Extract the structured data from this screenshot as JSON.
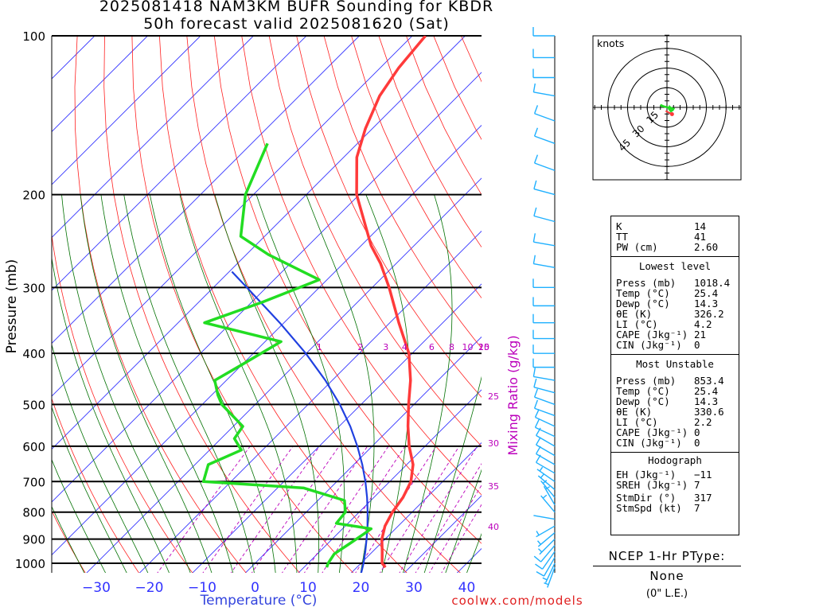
{
  "header": {
    "title_line1": "2025081418 NAM3KM BUFR Sounding for KBDR",
    "title_line2": "50h forecast valid 2025081620 (Sat)"
  },
  "credit": "coolwx.com/models",
  "colors": {
    "temperature": "#ff3a3a",
    "dewpoint": "#22dd22",
    "isotherm": "#3333ff",
    "dry_adiabat": "#ff2020",
    "moist_adiabat": "#007000",
    "mixing_ratio": "#bb00bb",
    "parcel": "#2040e0",
    "wind_barb": "#1fb0ff"
  },
  "chart_data": {
    "type": "skew-t",
    "ylabel": "Pressure (mb)",
    "xlabel": "Temperature (°C)",
    "mixing_ratio_label": "Mixing Ratio (g/kg)",
    "y_scale": "log",
    "ylim": [
      1050,
      100
    ],
    "xlim": [
      -38,
      42
    ],
    "pressure_ticks": [
      100,
      200,
      300,
      400,
      500,
      600,
      700,
      800,
      900,
      1000
    ],
    "temperature_ticks": [
      -30,
      -20,
      -10,
      0,
      10,
      20,
      30,
      40
    ],
    "mixing_ratio_ticks": [
      "1",
      "2",
      "3",
      "4",
      "6",
      "8",
      "10",
      "15",
      "20",
      "25",
      "30",
      "35",
      "40"
    ],
    "temperature_profile": [
      {
        "p": 1018,
        "t": 25.4
      },
      {
        "p": 1000,
        "t": 24.0
      },
      {
        "p": 950,
        "t": 21.8
      },
      {
        "p": 900,
        "t": 19.4
      },
      {
        "p": 850,
        "t": 17.5
      },
      {
        "p": 800,
        "t": 16.3
      },
      {
        "p": 750,
        "t": 15.5
      },
      {
        "p": 700,
        "t": 14.0
      },
      {
        "p": 650,
        "t": 11.2
      },
      {
        "p": 600,
        "t": 7.0
      },
      {
        "p": 550,
        "t": 3.0
      },
      {
        "p": 500,
        "t": -1.0
      },
      {
        "p": 450,
        "t": -5.2
      },
      {
        "p": 400,
        "t": -10.6
      },
      {
        "p": 350,
        "t": -18.3
      },
      {
        "p": 300,
        "t": -26.8
      },
      {
        "p": 270,
        "t": -33.0
      },
      {
        "p": 250,
        "t": -38.1
      },
      {
        "p": 200,
        "t": -50.5
      },
      {
        "p": 170,
        "t": -57.5
      },
      {
        "p": 150,
        "t": -61.3
      },
      {
        "p": 130,
        "t": -64.8
      },
      {
        "p": 115,
        "t": -66.5
      },
      {
        "p": 100,
        "t": -67.5
      }
    ],
    "dewpoint_profile": [
      {
        "p": 1018,
        "t": 14.3
      },
      {
        "p": 1000,
        "t": 13.8
      },
      {
        "p": 960,
        "t": 13.2
      },
      {
        "p": 920,
        "t": 14.1
      },
      {
        "p": 880,
        "t": 15.0
      },
      {
        "p": 860,
        "t": 15.4
      },
      {
        "p": 840,
        "t": 7.8
      },
      {
        "p": 800,
        "t": 7.4
      },
      {
        "p": 760,
        "t": 5.0
      },
      {
        "p": 720,
        "t": -5.0
      },
      {
        "p": 700,
        "t": -25.2
      },
      {
        "p": 650,
        "t": -27.5
      },
      {
        "p": 610,
        "t": -24.0
      },
      {
        "p": 580,
        "t": -27.5
      },
      {
        "p": 550,
        "t": -28.2
      },
      {
        "p": 500,
        "t": -36.3
      },
      {
        "p": 480,
        "t": -38.8
      },
      {
        "p": 450,
        "t": -42.2
      },
      {
        "p": 420,
        "t": -40.0
      },
      {
        "p": 380,
        "t": -37.0
      },
      {
        "p": 350,
        "t": -55.0
      },
      {
        "p": 320,
        "t": -48.0
      },
      {
        "p": 290,
        "t": -41.5
      },
      {
        "p": 260,
        "t": -55.8
      },
      {
        "p": 240,
        "t": -64.5
      },
      {
        "p": 200,
        "t": -71.5
      },
      {
        "p": 160,
        "t": -77.0
      }
    ],
    "parcel_profile": [
      {
        "p": 1050,
        "t": 22.1
      },
      {
        "p": 1000,
        "t": 20.5
      },
      {
        "p": 950,
        "t": 18.6
      },
      {
        "p": 900,
        "t": 16.5
      },
      {
        "p": 850,
        "t": 14.2
      },
      {
        "p": 800,
        "t": 11.6
      },
      {
        "p": 750,
        "t": 8.7
      },
      {
        "p": 700,
        "t": 5.4
      },
      {
        "p": 650,
        "t": 1.6
      },
      {
        "p": 600,
        "t": -2.8
      },
      {
        "p": 550,
        "t": -7.9
      },
      {
        "p": 500,
        "t": -14.0
      },
      {
        "p": 450,
        "t": -21.3
      },
      {
        "p": 400,
        "t": -30.1
      },
      {
        "p": 350,
        "t": -40.8
      },
      {
        "p": 300,
        "t": -53.7
      },
      {
        "p": 280,
        "t": -59.5
      }
    ],
    "wind_profile": [
      {
        "p": 1018,
        "dir": 200,
        "spd": 8
      },
      {
        "p": 1000,
        "dir": 205,
        "spd": 9
      },
      {
        "p": 975,
        "dir": 210,
        "spd": 10
      },
      {
        "p": 950,
        "dir": 215,
        "spd": 10
      },
      {
        "p": 925,
        "dir": 220,
        "spd": 10
      },
      {
        "p": 900,
        "dir": 225,
        "spd": 9
      },
      {
        "p": 875,
        "dir": 230,
        "spd": 8
      },
      {
        "p": 850,
        "dir": 240,
        "spd": 6
      },
      {
        "p": 825,
        "dir": 280,
        "spd": 4
      },
      {
        "p": 800,
        "dir": 320,
        "spd": 5
      },
      {
        "p": 775,
        "dir": 330,
        "spd": 6
      },
      {
        "p": 750,
        "dir": 320,
        "spd": 7
      },
      {
        "p": 725,
        "dir": 310,
        "spd": 8
      },
      {
        "p": 700,
        "dir": 305,
        "spd": 9
      },
      {
        "p": 675,
        "dir": 300,
        "spd": 10
      },
      {
        "p": 650,
        "dir": 300,
        "spd": 10
      },
      {
        "p": 625,
        "dir": 300,
        "spd": 10
      },
      {
        "p": 600,
        "dir": 300,
        "spd": 10
      },
      {
        "p": 575,
        "dir": 295,
        "spd": 10
      },
      {
        "p": 550,
        "dir": 295,
        "spd": 10
      },
      {
        "p": 525,
        "dir": 290,
        "spd": 10
      },
      {
        "p": 500,
        "dir": 290,
        "spd": 10
      },
      {
        "p": 475,
        "dir": 285,
        "spd": 10
      },
      {
        "p": 450,
        "dir": 280,
        "spd": 10
      },
      {
        "p": 425,
        "dir": 270,
        "spd": 10
      },
      {
        "p": 400,
        "dir": 270,
        "spd": 10
      },
      {
        "p": 375,
        "dir": 270,
        "spd": 10
      },
      {
        "p": 350,
        "dir": 270,
        "spd": 10
      },
      {
        "p": 325,
        "dir": 270,
        "spd": 10
      },
      {
        "p": 300,
        "dir": 270,
        "spd": 10
      },
      {
        "p": 275,
        "dir": 280,
        "spd": 10
      },
      {
        "p": 250,
        "dir": 280,
        "spd": 10
      },
      {
        "p": 225,
        "dir": 285,
        "spd": 10
      },
      {
        "p": 200,
        "dir": 285,
        "spd": 10
      },
      {
        "p": 180,
        "dir": 290,
        "spd": 10
      },
      {
        "p": 160,
        "dir": 290,
        "spd": 10
      },
      {
        "p": 145,
        "dir": 290,
        "spd": 10
      },
      {
        "p": 130,
        "dir": 280,
        "spd": 10
      },
      {
        "p": 120,
        "dir": 270,
        "spd": 10
      },
      {
        "p": 110,
        "dir": 270,
        "spd": 10
      },
      {
        "p": 100,
        "dir": 270,
        "spd": 10
      }
    ],
    "hodograph": {
      "units_label": "knots",
      "ring_labels": [
        "15",
        "30",
        "45"
      ],
      "ring_values_kt": [
        15,
        30,
        45
      ],
      "points_kt": [
        {
          "u": 4.0,
          "v": -1.5
        },
        {
          "u": 2.0,
          "v": 0.5
        },
        {
          "u": 1.5,
          "v": -1.0
        },
        {
          "u": 3.0,
          "v": -3.0
        },
        {
          "u": 4.5,
          "v": -2.0
        },
        {
          "u": 5.0,
          "v": -1.0
        },
        {
          "u": 3.5,
          "v": -0.5
        },
        {
          "u": 0.5,
          "v": 0.0
        },
        {
          "u": -2.5,
          "v": 0.8
        },
        {
          "u": -4.0,
          "v": 1.5
        },
        {
          "u": -5.0,
          "v": 1.8
        },
        {
          "u": -3.0,
          "v": 0.5
        }
      ],
      "storm_motion_kt": {
        "u": -1.0,
        "v": -1.5
      }
    }
  },
  "params": {
    "indices": [
      {
        "label": "K",
        "value": "14"
      },
      {
        "label": "TT",
        "value": "41"
      },
      {
        "label": "PW (cm)",
        "value": "2.60"
      }
    ],
    "lowest": {
      "title": "Lowest level",
      "rows": [
        {
          "label": "Press (mb)",
          "value": "1018.4"
        },
        {
          "label": "Temp (°C)",
          "value": "25.4"
        },
        {
          "label": "Dewp (°C)",
          "value": "14.3"
        },
        {
          "label": "θE (K)",
          "value": "326.2"
        },
        {
          "label": "LI (°C)",
          "value": "4.2"
        },
        {
          "label": "CAPE (Jkg⁻¹)",
          "value": "21"
        },
        {
          "label": "CIN (Jkg⁻¹)",
          "value": "0"
        }
      ]
    },
    "unstable": {
      "title": "Most Unstable",
      "rows": [
        {
          "label": "Press (mb)",
          "value": "853.4"
        },
        {
          "label": "Temp (°C)",
          "value": "25.4"
        },
        {
          "label": "Dewp (°C)",
          "value": "14.3"
        },
        {
          "label": "θE (K)",
          "value": "330.6"
        },
        {
          "label": "LI (°C)",
          "value": "2.2"
        },
        {
          "label": "CAPE (Jkg⁻¹)",
          "value": "0"
        },
        {
          "label": "CIN (Jkg⁻¹)",
          "value": "0"
        }
      ]
    },
    "hodo": {
      "title": "Hodograph",
      "rows": [
        {
          "label": "EH (Jkg⁻¹)",
          "value": "−11"
        },
        {
          "label": "SREH (Jkg⁻¹)",
          "value": "7"
        },
        {
          "label": "StmDir (°)",
          "value": "317"
        },
        {
          "label": "StmSpd (kt)",
          "value": "7"
        }
      ]
    }
  },
  "ptype": {
    "title": "NCEP 1-Hr PType:",
    "value": "None",
    "note": "(0\" L.E.)"
  }
}
